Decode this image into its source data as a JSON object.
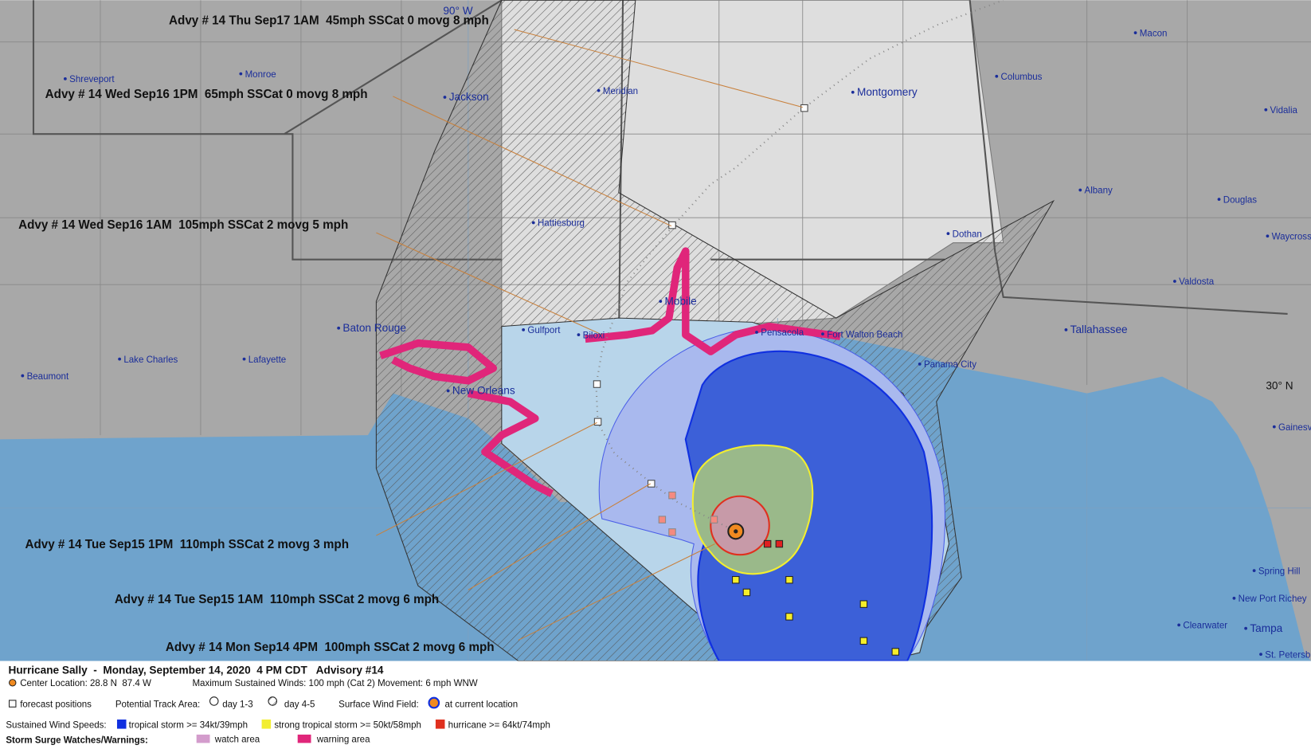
{
  "map": {
    "lon_label": "90° W",
    "lat_label": "30° N",
    "cities": [
      "Shreveport",
      "Monroe",
      "Jackson",
      "Meridian",
      "Montgomery",
      "Columbus",
      "Macon",
      "Vidalia",
      "Albany",
      "Douglas",
      "Waycross",
      "Dothan",
      "Valdosta",
      "Tallahassee",
      "Hattiesburg",
      "Mobile",
      "Gulfport",
      "Biloxi",
      "Pensacola",
      "Fort Walton Beach",
      "Panama City",
      "Baton Rouge",
      "Lake Charles",
      "Lafayette",
      "Beaumont",
      "New Orleans",
      "Gainesville",
      "Spring Hill",
      "New Port Richey",
      "Clearwater",
      "Tampa",
      "St. Petersburg"
    ],
    "advisories": [
      "Advy # 14 Thu Sep17 1AM  45mph SSCat 0 movg 8 mph",
      "Advy # 14 Wed Sep16 1PM  65mph SSCat 0 movg 8 mph",
      "Advy # 14 Wed Sep16 1AM  105mph SSCat 2 movg 5 mph",
      "Advy # 14 Tue Sep15 1PM  110mph SSCat 2 movg 3 mph",
      "Advy # 14 Tue Sep15 1AM  110mph SSCat 2 movg 6 mph",
      "Advy # 14 Mon Sep14 4PM  100mph SSCat 2 movg 6 mph"
    ]
  },
  "legend": {
    "title": "Hurricane Sally  -  Monday, September 14, 2020  4 PM CDT   Advisory #14",
    "center_location": "Center Location: 28.8 N  87.4 W",
    "max_winds": "Maximum Sustained Winds: 100 mph (Cat 2) Movement: 6 mph WNW",
    "forecast_positions": "forecast positions",
    "track_area_label": "Potential Track Area:",
    "day_1_3": "day 1-3",
    "day_4_5": "day 4-5",
    "wind_field_label": "Surface Wind Field:",
    "current_location": "at current location",
    "wind_speeds_label": "Sustained Wind Speeds:",
    "ts": "tropical storm >= 34kt/39mph",
    "sts": "strong tropical storm >= 50kt/58mph",
    "hu": "hurricane >= 64kt/74mph",
    "surge_label": "Storm Surge Watches/Warnings:",
    "watch": "watch area",
    "warning": "warning area"
  }
}
